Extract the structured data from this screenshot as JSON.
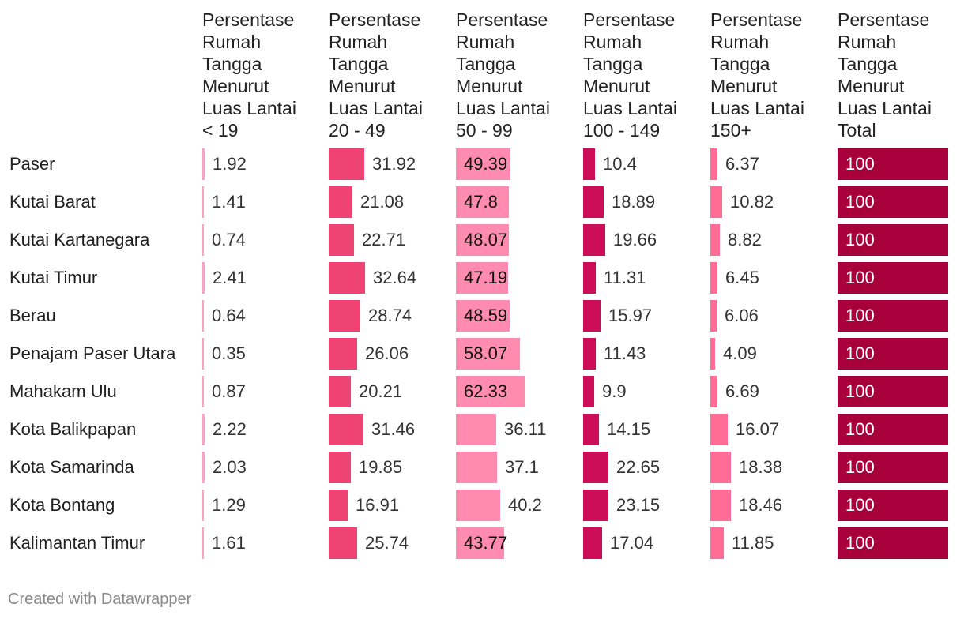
{
  "chart_data": {
    "type": "table",
    "columns": [
      {
        "header_lines": [
          "Persentase",
          "Rumah",
          "Tangga",
          "Menurut",
          "Luas Lantai",
          "< 19"
        ],
        "color": "#f4a6c4"
      },
      {
        "header_lines": [
          "Persentase",
          "Rumah",
          "Tangga",
          "Menurut",
          "Luas Lantai",
          "20 - 49"
        ],
        "color": "#ef4373"
      },
      {
        "header_lines": [
          "Persentase",
          "Rumah",
          "Tangga",
          "Menurut",
          "Luas Lantai",
          "50 - 99"
        ],
        "color": "#ff8bb0"
      },
      {
        "header_lines": [
          "Persentase",
          "Rumah",
          "Tangga",
          "Menurut",
          "Luas Lantai",
          "100 - 149"
        ],
        "color": "#cc0e58"
      },
      {
        "header_lines": [
          "Persentase",
          "Rumah",
          "Tangga",
          "Menurut",
          "Luas Lantai",
          "150+"
        ],
        "color": "#ff6c96"
      },
      {
        "header_lines": [
          "Persentase",
          "Rumah",
          "Tangga",
          "Menurut",
          "Luas Lantai",
          "Total"
        ],
        "color": "#a8003a"
      }
    ],
    "rows": [
      {
        "label": "Paser",
        "values": [
          "1.92",
          "31.92",
          "49.39",
          "10.4",
          "6.37",
          "100"
        ]
      },
      {
        "label": "Kutai Barat",
        "values": [
          "1.41",
          "21.08",
          "47.8",
          "18.89",
          "10.82",
          "100"
        ]
      },
      {
        "label": "Kutai Kartanegara",
        "values": [
          "0.74",
          "22.71",
          "48.07",
          "19.66",
          "8.82",
          "100"
        ]
      },
      {
        "label": "Kutai Timur",
        "values": [
          "2.41",
          "32.64",
          "47.19",
          "11.31",
          "6.45",
          "100"
        ]
      },
      {
        "label": "Berau",
        "values": [
          "0.64",
          "28.74",
          "48.59",
          "15.97",
          "6.06",
          "100"
        ]
      },
      {
        "label": "Penajam Paser Utara",
        "values": [
          "0.35",
          "26.06",
          "58.07",
          "11.43",
          "4.09",
          "100"
        ]
      },
      {
        "label": "Mahakam Ulu",
        "values": [
          "0.87",
          "20.21",
          "62.33",
          "9.9",
          "6.69",
          "100"
        ]
      },
      {
        "label": "Kota Balikpapan",
        "values": [
          "2.22",
          "31.46",
          "36.11",
          "14.15",
          "16.07",
          "100"
        ]
      },
      {
        "label": "Kota Samarinda",
        "values": [
          "2.03",
          "19.85",
          "37.1",
          "22.65",
          "18.38",
          "100"
        ]
      },
      {
        "label": "Kota Bontang",
        "values": [
          "1.29",
          "16.91",
          "40.2",
          "23.15",
          "18.46",
          "100"
        ]
      },
      {
        "label": "Kalimantan Timur",
        "values": [
          "1.61",
          "25.74",
          "43.77",
          "17.04",
          "11.85",
          "100"
        ]
      }
    ]
  },
  "footer": "Created with Datawrapper"
}
